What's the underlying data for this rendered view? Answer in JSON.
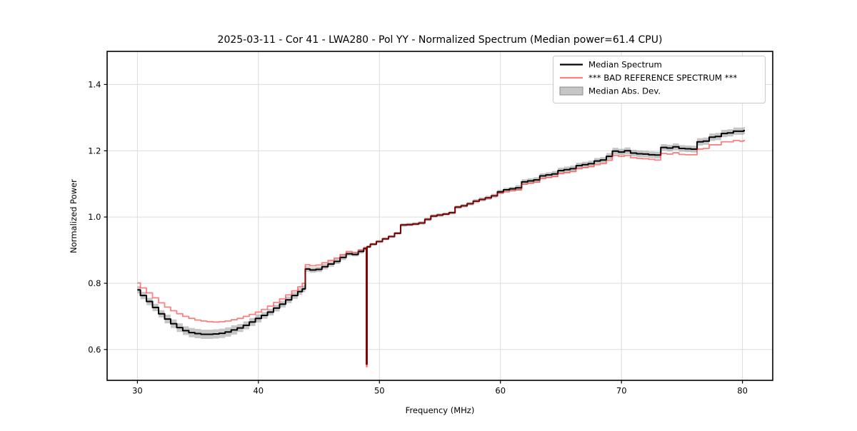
{
  "figure": {
    "background": "#ffffff",
    "grid_color": "#dcdcdc",
    "spine_color": "#000000",
    "legend_border_color": "#c9c9c9",
    "legend_background": "#ffffff"
  },
  "chart_data": {
    "type": "line",
    "title": "2025-03-11 - Cor 41 - LWA280 - Pol YY - Normalized Spectrum (Median power=61.4 CPU)",
    "xlabel": "Frequency (MHz)",
    "ylabel": "Normalized Power",
    "xlim": [
      27.5,
      82.5
    ],
    "ylim": [
      0.507,
      1.5
    ],
    "xticks": [
      30,
      40,
      50,
      60,
      70,
      80
    ],
    "xtick_labels": [
      "30",
      "40",
      "50",
      "60",
      "70",
      "80"
    ],
    "yticks": [
      0.6,
      0.8,
      1.0,
      1.2,
      1.4
    ],
    "ytick_labels": [
      "0.6",
      "0.8",
      "1.0",
      "1.2",
      "1.4"
    ],
    "grid": true,
    "legend_position": "upper right",
    "draw_style": "steps-mid",
    "spike": {
      "frequency_mhz": 48.95,
      "min_value": 0.548
    },
    "x": [
      30,
      30.5,
      31,
      31.5,
      32,
      32.5,
      33,
      33.5,
      34,
      34.5,
      35,
      35.5,
      36,
      36.5,
      37,
      37.5,
      38,
      38.5,
      39,
      39.5,
      40,
      40.5,
      41,
      41.5,
      42,
      42.5,
      43,
      43.5,
      43.75,
      44,
      44.5,
      45,
      45.5,
      46,
      46.5,
      47,
      47.5,
      48,
      48.5,
      48.9,
      48.95,
      49,
      49.5,
      50,
      50.5,
      51,
      51.5,
      52,
      52.5,
      53,
      53.5,
      54,
      54.5,
      55,
      55.5,
      56,
      56.5,
      57,
      57.5,
      58,
      58.5,
      59,
      59.5,
      60,
      60.5,
      61,
      61.5,
      62,
      62.5,
      63,
      63.5,
      64,
      64.5,
      65,
      65.5,
      66,
      66.5,
      67,
      67.5,
      68,
      68.5,
      69,
      69.5,
      70,
      70.5,
      71,
      71.5,
      72,
      72.5,
      73,
      73.5,
      74,
      74.5,
      75,
      75.5,
      76,
      76.5,
      77,
      77.5,
      78,
      78.5,
      79,
      79.5,
      80,
      80.2
    ],
    "series": [
      {
        "name": "Median Spectrum",
        "color": "#000000",
        "alpha": 1,
        "line_width": 2,
        "values": [
          0.78,
          0.763,
          0.745,
          0.727,
          0.708,
          0.692,
          0.678,
          0.666,
          0.657,
          0.651,
          0.648,
          0.646,
          0.646,
          0.647,
          0.649,
          0.653,
          0.659,
          0.665,
          0.673,
          0.683,
          0.694,
          0.703,
          0.713,
          0.725,
          0.737,
          0.75,
          0.763,
          0.775,
          0.783,
          0.843,
          0.84,
          0.842,
          0.85,
          0.858,
          0.866,
          0.878,
          0.889,
          0.887,
          0.896,
          0.905,
          0.556,
          0.91,
          0.918,
          0.926,
          0.934,
          0.941,
          0.951,
          0.976,
          0.977,
          0.979,
          0.982,
          0.993,
          1.003,
          1.006,
          1.009,
          1.013,
          1.03,
          1.034,
          1.04,
          1.048,
          1.053,
          1.058,
          1.064,
          1.076,
          1.082,
          1.085,
          1.088,
          1.106,
          1.109,
          1.112,
          1.124,
          1.127,
          1.13,
          1.14,
          1.143,
          1.146,
          1.155,
          1.158,
          1.161,
          1.169,
          1.172,
          1.183,
          1.199,
          1.196,
          1.2,
          1.193,
          1.191,
          1.19,
          1.188,
          1.187,
          1.21,
          1.208,
          1.212,
          1.207,
          1.206,
          1.205,
          1.227,
          1.229,
          1.241,
          1.243,
          1.252,
          1.254,
          1.259,
          1.259,
          1.261
        ]
      },
      {
        "name": "*** BAD REFERENCE SPECTRUM ***",
        "color": "#ff0000",
        "alpha": 0.5,
        "line_width": 1.8,
        "values": [
          0.801,
          0.786,
          0.771,
          0.756,
          0.741,
          0.728,
          0.717,
          0.708,
          0.7,
          0.694,
          0.689,
          0.686,
          0.684,
          0.683,
          0.684,
          0.686,
          0.69,
          0.694,
          0.7,
          0.706,
          0.713,
          0.721,
          0.731,
          0.742,
          0.753,
          0.765,
          0.777,
          0.789,
          0.8,
          0.856,
          0.853,
          0.855,
          0.862,
          0.869,
          0.876,
          0.887,
          0.896,
          0.893,
          0.901,
          0.907,
          0.548,
          0.911,
          0.918,
          0.926,
          0.934,
          0.941,
          0.951,
          0.976,
          0.977,
          0.979,
          0.982,
          0.993,
          1.003,
          1.006,
          1.009,
          1.013,
          1.03,
          1.034,
          1.04,
          1.048,
          1.053,
          1.058,
          1.064,
          1.072,
          1.076,
          1.079,
          1.082,
          1.099,
          1.102,
          1.105,
          1.116,
          1.119,
          1.122,
          1.131,
          1.134,
          1.137,
          1.146,
          1.149,
          1.152,
          1.158,
          1.161,
          1.171,
          1.186,
          1.183,
          1.186,
          1.179,
          1.177,
          1.176,
          1.174,
          1.172,
          1.192,
          1.19,
          1.194,
          1.189,
          1.188,
          1.188,
          1.205,
          1.207,
          1.218,
          1.218,
          1.227,
          1.227,
          1.231,
          1.229,
          1.231
        ]
      },
      {
        "name": "Median Abs. Dev.",
        "band_type": "band",
        "around": "Median Spectrum",
        "color": "#808080",
        "alpha": 0.45,
        "half_width": [
          0.011,
          0.011,
          0.011,
          0.011,
          0.011,
          0.013,
          0.013,
          0.013,
          0.013,
          0.014,
          0.014,
          0.014,
          0.014,
          0.014,
          0.014,
          0.014,
          0.014,
          0.012,
          0.012,
          0.012,
          0.012,
          0.01,
          0.01,
          0.01,
          0.01,
          0.01,
          0.01,
          0.01,
          0.01,
          0.008,
          0.008,
          0.008,
          0.008,
          0.008,
          0.008,
          0.008,
          0.006,
          0.006,
          0.006,
          0.006,
          0.006,
          0.004,
          0.004,
          0.004,
          0.004,
          0.004,
          0.004,
          0.005,
          0.005,
          0.005,
          0.005,
          0.005,
          0.005,
          0.005,
          0.005,
          0.005,
          0.005,
          0.005,
          0.005,
          0.006,
          0.006,
          0.006,
          0.006,
          0.006,
          0.006,
          0.006,
          0.008,
          0.008,
          0.008,
          0.008,
          0.008,
          0.008,
          0.009,
          0.009,
          0.009,
          0.009,
          0.009,
          0.009,
          0.009,
          0.009,
          0.009,
          0.01,
          0.01,
          0.01,
          0.01,
          0.01,
          0.01,
          0.01,
          0.01,
          0.01,
          0.01,
          0.01,
          0.01,
          0.01,
          0.01,
          0.01,
          0.011,
          0.011,
          0.011,
          0.011,
          0.011,
          0.011,
          0.011,
          0.011,
          0.011
        ]
      }
    ]
  },
  "legend": {
    "items": [
      {
        "label": "Median Spectrum",
        "swatch": "black-line"
      },
      {
        "label": "*** BAD REFERENCE SPECTRUM ***",
        "swatch": "red-line"
      },
      {
        "label": "Median Abs. Dev.",
        "swatch": "gray-patch"
      }
    ]
  }
}
